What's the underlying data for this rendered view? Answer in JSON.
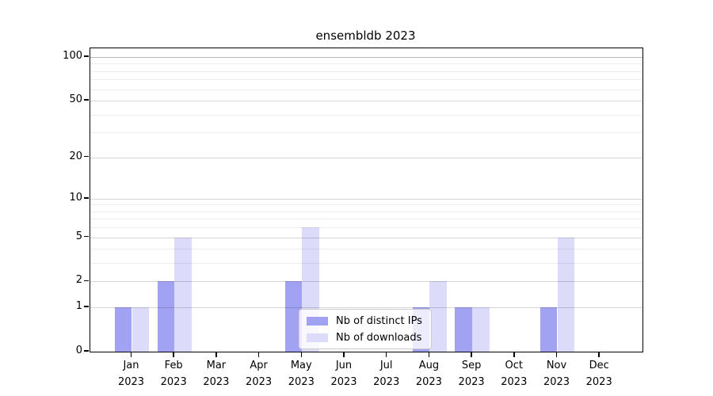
{
  "title": "ensembldb 2023",
  "chart_data": {
    "type": "bar",
    "title": "ensembldb 2023",
    "categories": [
      "Jan",
      "Feb",
      "Mar",
      "Apr",
      "May",
      "Jun",
      "Jul",
      "Aug",
      "Sep",
      "Oct",
      "Nov",
      "Dec"
    ],
    "year_label": "2023",
    "series": [
      {
        "name": "Nb of distinct IPs",
        "color": "#a2a2f2",
        "values": [
          1,
          2,
          0,
          0,
          2,
          0,
          0,
          1,
          1,
          0,
          1,
          0
        ]
      },
      {
        "name": "Nb of downloads",
        "color": "#dcdcfa",
        "values": [
          1,
          5,
          0,
          0,
          6,
          0,
          0,
          2,
          1,
          0,
          5,
          0
        ]
      }
    ],
    "xlabel": "",
    "ylabel": "",
    "yscale": "log1p",
    "ylim": [
      0,
      115
    ],
    "yticks": [
      0,
      1,
      2,
      5,
      10,
      20,
      50,
      100
    ],
    "minor_yticks": [
      3,
      4,
      6,
      7,
      8,
      9,
      30,
      40,
      60,
      70,
      80,
      90
    ],
    "grid": "horizontal",
    "legend_position": "lower center"
  },
  "colors": {
    "grid_major": "rgba(0,0,0,0.16)",
    "grid_minor": "rgba(0,0,0,0.07)",
    "grid_top": "rgba(0,0,0,0.28)",
    "axis": "#000000"
  }
}
